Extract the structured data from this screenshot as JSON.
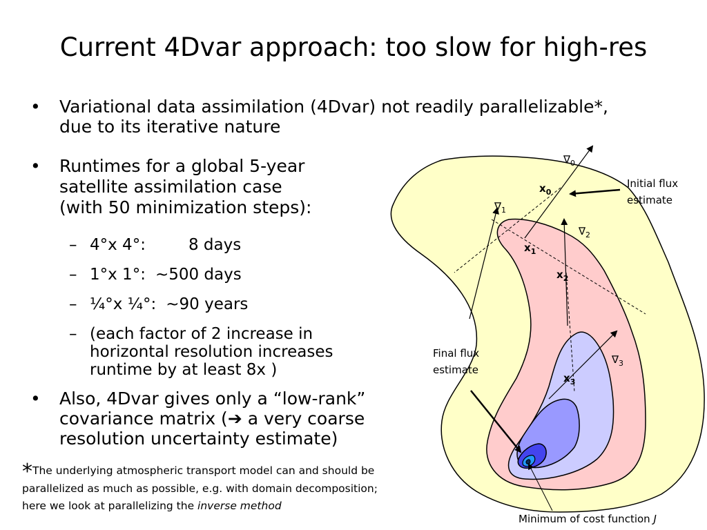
{
  "title": "Current 4Dvar approach: too slow for high-res",
  "bullets": {
    "b1": [
      "Variational data assimilation (4Dvar) not readily parallelizable*,",
      "due to its iterative nature"
    ],
    "b2": [
      "Runtimes for a global 5-year",
      "satellite assimilation case",
      "(with 50 minimization steps):"
    ],
    "b3": [
      "Also, 4Dvar gives only a “low-rank”",
      "covariance matrix (",
      "a very coarse",
      "resolution uncertainty estimate)"
    ],
    "arrow_glyph": "➔",
    "bullet_glyph": "•"
  },
  "runtimes": [
    {
      "res": "4°x 4°:",
      "time": "8 days"
    },
    {
      "res": "1°x 1°:",
      "time": "~500 days"
    },
    {
      "res": "¼°x ¼°:",
      "time": "~90 years"
    }
  ],
  "runtime_note": [
    "(each factor of 2 increase in",
    "horizontal resolution increases",
    "runtime by at least 8x )"
  ],
  "dash_glyph": "–",
  "footnote": {
    "star": "*",
    "line1": "The underlying atmospheric transport model can and should be",
    "line2": "parallelized as much as possible, e.g. with domain decomposition;",
    "line3_pre": "here we look at parallelizing the ",
    "line3_em": "inverse method"
  },
  "diagram": {
    "nabla": "∇",
    "x": "x",
    "subs": [
      "0",
      "1",
      "2",
      "3"
    ],
    "initial_flux": [
      "Initial flux",
      "estimate"
    ],
    "final_flux": [
      "Final flux",
      "estimate"
    ],
    "minimum_label": "Minimum of cost function ",
    "minimum_symbol": "J",
    "colors": {
      "outer": "#ffffc8",
      "pink": "#ffcccc",
      "lavender": "#ccccff",
      "blue_mid": "#9999ff",
      "blue_deep": "#4444ee",
      "cyan": "#2299ff",
      "dark": "#0a2a55"
    }
  }
}
